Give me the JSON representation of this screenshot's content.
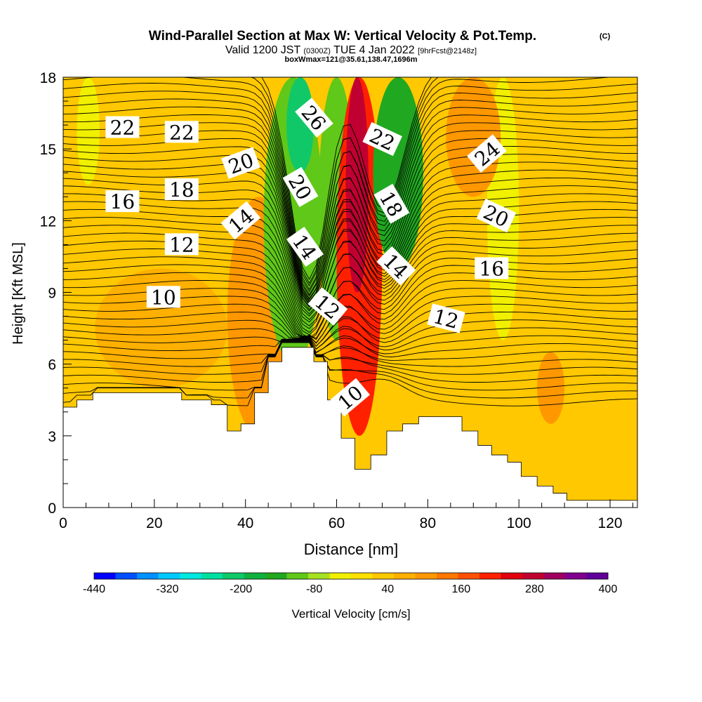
{
  "chart_data": {
    "type": "heatmap",
    "title": "Wind-Parallel Section at Max W: Vertical Velocity & Pot.Temp.",
    "title_mark": "(C)",
    "subtitle_parts": {
      "valid": "Valid 1200 JST",
      "utc": "(0300Z)",
      "date": "TUE 4 Jan 2022",
      "fcst": "[9hrFcst@2148z]"
    },
    "subtitle2": "boxWmax=121@35.61,138.47,1696m",
    "xlabel": "Distance [nm]",
    "ylabel": "Height [Kft MSL]",
    "xlim": [
      0,
      126
    ],
    "ylim": [
      0,
      18
    ],
    "xticks": [
      0,
      20,
      40,
      60,
      80,
      100,
      120
    ],
    "yticks": [
      0,
      3,
      6,
      9,
      12,
      15,
      18
    ],
    "colorbar": {
      "label": "Vertical Velocity [cm/s]",
      "tick_labels": [
        "-440",
        "-320",
        "-200",
        "-80",
        "40",
        "160",
        "280",
        "400"
      ],
      "tick_values": [
        -440,
        -320,
        -200,
        -80,
        40,
        160,
        280,
        400
      ],
      "range": [
        -440,
        400
      ],
      "colors": [
        "#0000ff",
        "#0050ff",
        "#0090ff",
        "#00c8ff",
        "#00e8e0",
        "#00e0a0",
        "#10c868",
        "#10b040",
        "#20a820",
        "#60c818",
        "#a8e020",
        "#f0f000",
        "#ffe000",
        "#ffc800",
        "#ffb000",
        "#ff9800",
        "#ff7800",
        "#ff5000",
        "#ff2000",
        "#e00010",
        "#c00030",
        "#a00060",
        "#800090",
        "#600098"
      ]
    },
    "velocity_bands": [
      {
        "x": [
          0,
          126
        ],
        "y": [
          0,
          18
        ],
        "value": 40
      },
      {
        "x": [
          7,
          36
        ],
        "y": [
          5,
          10
        ],
        "value": 70
      },
      {
        "x": [
          36,
          50
        ],
        "y": [
          3,
          13
        ],
        "value": 100
      },
      {
        "x": [
          44,
          57
        ],
        "y": [
          6,
          18
        ],
        "value": -120
      },
      {
        "x": [
          49,
          55
        ],
        "y": [
          14,
          18
        ],
        "value": -220
      },
      {
        "x": [
          56,
          64
        ],
        "y": [
          7,
          18
        ],
        "value": -100
      },
      {
        "x": [
          60,
          70
        ],
        "y": [
          3,
          18
        ],
        "value": 200
      },
      {
        "x": [
          62,
          67
        ],
        "y": [
          9,
          18
        ],
        "value": 290
      },
      {
        "x": [
          68,
          79
        ],
        "y": [
          10,
          18
        ],
        "value": -130
      },
      {
        "x": [
          93,
          100
        ],
        "y": [
          7,
          18
        ],
        "value": -40
      },
      {
        "x": [
          84,
          96
        ],
        "y": [
          13,
          18
        ],
        "value": 100
      },
      {
        "x": [
          3,
          8
        ],
        "y": [
          13.5,
          18
        ],
        "value": -40
      },
      {
        "x": [
          104,
          110
        ],
        "y": [
          3.5,
          6.5
        ],
        "value": 90
      }
    ],
    "terrain_kft": [
      {
        "x": 0,
        "h": 4.2
      },
      {
        "x": 3,
        "h": 4.5
      },
      {
        "x": 6.5,
        "h": 4.8
      },
      {
        "x": 26,
        "h": 4.5
      },
      {
        "x": 32.5,
        "h": 4.3
      },
      {
        "x": 36,
        "h": 3.2
      },
      {
        "x": 39,
        "h": 3.5
      },
      {
        "x": 42,
        "h": 4.8
      },
      {
        "x": 45,
        "h": 6.1
      },
      {
        "x": 48,
        "h": 6.7
      },
      {
        "x": 55,
        "h": 6.1
      },
      {
        "x": 58,
        "h": 4.5
      },
      {
        "x": 61,
        "h": 2.9
      },
      {
        "x": 64,
        "h": 1.6
      },
      {
        "x": 67.5,
        "h": 2.2
      },
      {
        "x": 71,
        "h": 3.2
      },
      {
        "x": 74.5,
        "h": 3.5
      },
      {
        "x": 78,
        "h": 3.8
      },
      {
        "x": 87.5,
        "h": 3.2
      },
      {
        "x": 91,
        "h": 2.6
      },
      {
        "x": 94,
        "h": 2.2
      },
      {
        "x": 97.5,
        "h": 1.9
      },
      {
        "x": 100.5,
        "h": 1.3
      },
      {
        "x": 104,
        "h": 0.9
      },
      {
        "x": 107.5,
        "h": 0.6
      },
      {
        "x": 110.5,
        "h": 0.3
      },
      {
        "x": 126,
        "h": 0.3
      }
    ],
    "theta_contours": {
      "interval": 1,
      "labels": [
        {
          "value": "22",
          "x": 13,
          "y": 15.9,
          "angle": 0
        },
        {
          "value": "22",
          "x": 26,
          "y": 15.7,
          "angle": 0
        },
        {
          "value": "20",
          "x": 39,
          "y": 14.4,
          "angle": -20
        },
        {
          "value": "26",
          "x": 55,
          "y": 16.3,
          "angle": 50
        },
        {
          "value": "22",
          "x": 70,
          "y": 15.4,
          "angle": 25
        },
        {
          "value": "24",
          "x": 93,
          "y": 14.8,
          "angle": -40
        },
        {
          "value": "18",
          "x": 26,
          "y": 13.3,
          "angle": 0
        },
        {
          "value": "16",
          "x": 13,
          "y": 12.8,
          "angle": 0
        },
        {
          "value": "20",
          "x": 52,
          "y": 13.4,
          "angle": 60
        },
        {
          "value": "18",
          "x": 72,
          "y": 12.7,
          "angle": 60
        },
        {
          "value": "20",
          "x": 95,
          "y": 12.2,
          "angle": 25
        },
        {
          "value": "14",
          "x": 39,
          "y": 12.0,
          "angle": -40
        },
        {
          "value": "12",
          "x": 26,
          "y": 11.0,
          "angle": 0
        },
        {
          "value": "14",
          "x": 53,
          "y": 10.9,
          "angle": 55
        },
        {
          "value": "14",
          "x": 73,
          "y": 10.1,
          "angle": 45
        },
        {
          "value": "16",
          "x": 94,
          "y": 10.0,
          "angle": 0
        },
        {
          "value": "10",
          "x": 22,
          "y": 8.8,
          "angle": 0
        },
        {
          "value": "12",
          "x": 58,
          "y": 8.4,
          "angle": 40
        },
        {
          "value": "12",
          "x": 84,
          "y": 7.9,
          "angle": 15
        },
        {
          "value": "10",
          "x": 63,
          "y": 4.6,
          "angle": -40
        }
      ]
    }
  }
}
